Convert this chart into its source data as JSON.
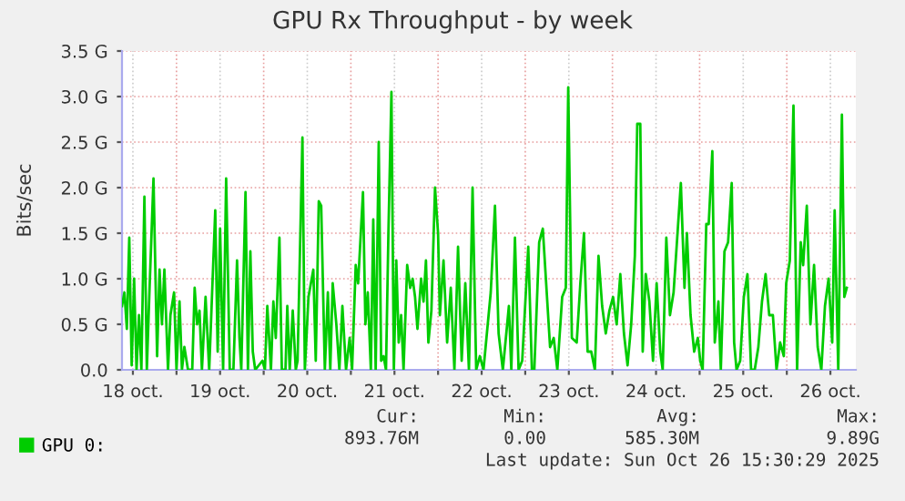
{
  "chart_data": {
    "type": "line",
    "title": "GPU Rx Throughput - by week",
    "ylabel": "Bits/sec",
    "xlim": [
      "2025-10-18T09:00",
      "2025-10-26T19:00"
    ],
    "xticks": [
      {
        "value": "2025-10-18T12:00",
        "label": "18 oct."
      },
      {
        "value": "2025-10-19T00:00",
        "label": null
      },
      {
        "value": "2025-10-19T12:00",
        "label": "19 oct."
      },
      {
        "value": "2025-10-20T00:00",
        "label": null
      },
      {
        "value": "2025-10-20T12:00",
        "label": "20 oct."
      },
      {
        "value": "2025-10-21T00:00",
        "label": null
      },
      {
        "value": "2025-10-21T12:00",
        "label": "21 oct."
      },
      {
        "value": "2025-10-22T00:00",
        "label": null
      },
      {
        "value": "2025-10-22T12:00",
        "label": "22 oct."
      },
      {
        "value": "2025-10-23T00:00",
        "label": null
      },
      {
        "value": "2025-10-23T12:00",
        "label": "23 oct."
      },
      {
        "value": "2025-10-24T00:00",
        "label": null
      },
      {
        "value": "2025-10-24T12:00",
        "label": "24 oct."
      },
      {
        "value": "2025-10-25T00:00",
        "label": null
      },
      {
        "value": "2025-10-25T12:00",
        "label": "25 oct."
      },
      {
        "value": "2025-10-26T00:00",
        "label": null
      },
      {
        "value": "2025-10-26T12:00",
        "label": "26 oct."
      }
    ],
    "ylim": [
      0,
      3.5
    ],
    "yticks": [
      {
        "value": 0,
        "label": "0.0"
      },
      {
        "value": 0.5,
        "label": "0.5 G"
      },
      {
        "value": 1,
        "label": "1.0 G"
      },
      {
        "value": 1.5,
        "label": "1.5 G"
      },
      {
        "value": 2,
        "label": "2.0 G"
      },
      {
        "value": 2.5,
        "label": "2.5 G"
      },
      {
        "value": 3,
        "label": "3.0 G"
      },
      {
        "value": 3.5,
        "label": "3.5 G"
      }
    ],
    "grid": true,
    "legend": "bottom",
    "marker": "none",
    "line_style": "solid",
    "annotations": [
      "Cur:",
      "893.76M",
      "Min:",
      "0.00",
      "Avg:",
      "585.30M",
      "Max:",
      "9.89G",
      "Last update: Sun Oct 26 15:30:29 2025"
    ],
    "series": [
      {
        "name": "GPU 0:",
        "color": "#00cc00",
        "x": [
          "2025-10-18T09:00",
          "2025-10-18T09:40",
          "2025-10-18T10:20",
          "2025-10-18T11:00",
          "2025-10-18T11:40",
          "2025-10-18T12:20",
          "2025-10-18T13:00",
          "2025-10-18T13:40",
          "2025-10-18T14:20",
          "2025-10-18T15:10",
          "2025-10-18T15:50",
          "2025-10-18T16:30",
          "2025-10-18T17:40",
          "2025-10-18T18:40",
          "2025-10-18T19:20",
          "2025-10-18T20:00",
          "2025-10-18T20:40",
          "2025-10-18T21:40",
          "2025-10-18T22:20",
          "2025-10-18T23:20",
          "2025-10-19T00:00",
          "2025-10-19T00:50",
          "2025-10-19T01:30",
          "2025-10-19T02:10",
          "2025-10-19T03:10",
          "2025-10-19T04:20",
          "2025-10-19T05:00",
          "2025-10-19T05:40",
          "2025-10-19T06:20",
          "2025-10-19T07:00",
          "2025-10-19T08:00",
          "2025-10-19T09:00",
          "2025-10-19T10:40",
          "2025-10-19T11:20",
          "2025-10-19T12:00",
          "2025-10-19T12:50",
          "2025-10-19T13:40",
          "2025-10-19T14:40",
          "2025-10-19T15:40",
          "2025-10-19T16:40",
          "2025-10-19T17:20",
          "2025-10-19T17:50",
          "2025-10-19T19:00",
          "2025-10-19T19:40",
          "2025-10-19T20:20",
          "2025-10-19T21:00",
          "2025-10-19T21:40",
          "2025-10-19T22:40",
          "2025-10-19T23:40",
          "2025-10-20T00:20",
          "2025-10-20T01:00",
          "2025-10-20T02:00",
          "2025-10-20T02:40",
          "2025-10-20T03:20",
          "2025-10-20T04:20",
          "2025-10-20T05:00",
          "2025-10-20T06:00",
          "2025-10-20T06:30",
          "2025-10-20T07:10",
          "2025-10-20T08:00",
          "2025-10-20T08:50",
          "2025-10-20T09:20",
          "2025-10-20T10:40",
          "2025-10-20T11:20",
          "2025-10-20T12:20",
          "2025-10-20T13:40",
          "2025-10-20T14:20",
          "2025-10-20T15:10",
          "2025-10-20T15:50",
          "2025-10-20T16:50",
          "2025-10-20T17:40",
          "2025-10-20T18:20",
          "2025-10-20T19:00",
          "2025-10-20T20:00",
          "2025-10-20T20:50",
          "2025-10-20T21:40",
          "2025-10-20T22:40",
          "2025-10-20T23:40",
          "2025-10-21T00:20",
          "2025-10-21T01:20",
          "2025-10-21T02:00",
          "2025-10-21T03:20",
          "2025-10-21T04:00",
          "2025-10-21T04:40",
          "2025-10-21T05:30",
          "2025-10-21T06:10",
          "2025-10-21T06:50",
          "2025-10-21T07:40",
          "2025-10-21T08:20",
          "2025-10-21T09:00",
          "2025-10-21T09:40",
          "2025-10-21T10:20",
          "2025-10-21T11:10",
          "2025-10-21T11:50",
          "2025-10-21T12:30",
          "2025-10-21T13:10",
          "2025-10-21T13:50",
          "2025-10-21T14:30",
          "2025-10-21T15:30",
          "2025-10-21T16:20",
          "2025-10-21T17:00",
          "2025-10-21T17:40",
          "2025-10-21T18:20",
          "2025-10-21T19:20",
          "2025-10-21T20:00",
          "2025-10-21T20:40",
          "2025-10-21T21:20",
          "2025-10-21T22:10",
          "2025-10-21T23:10",
          "2025-10-22T00:00",
          "2025-10-22T00:30",
          "2025-10-22T01:30",
          "2025-10-22T02:30",
          "2025-10-22T03:30",
          "2025-10-22T04:30",
          "2025-10-22T05:30",
          "2025-10-22T06:30",
          "2025-10-22T07:30",
          "2025-10-22T08:30",
          "2025-10-22T09:30",
          "2025-10-22T10:30",
          "2025-10-22T11:30",
          "2025-10-22T12:30",
          "2025-10-22T14:30",
          "2025-10-22T15:40",
          "2025-10-22T16:40",
          "2025-10-22T17:50",
          "2025-10-22T19:30",
          "2025-10-22T20:10",
          "2025-10-22T21:10",
          "2025-10-22T22:10",
          "2025-10-22T23:10",
          "2025-10-23T00:50",
          "2025-10-23T01:50",
          "2025-10-23T02:30",
          "2025-10-23T03:50",
          "2025-10-23T04:50",
          "2025-10-23T05:50",
          "2025-10-23T06:50",
          "2025-10-23T07:50",
          "2025-10-23T08:50",
          "2025-10-23T10:10",
          "2025-10-23T11:10",
          "2025-10-23T11:50",
          "2025-10-23T12:50",
          "2025-10-23T14:10",
          "2025-10-23T15:10",
          "2025-10-23T16:10",
          "2025-10-23T17:10",
          "2025-10-23T18:10",
          "2025-10-23T19:10",
          "2025-10-23T20:10",
          "2025-10-23T21:10",
          "2025-10-23T22:10",
          "2025-10-23T23:10",
          "2025-10-24T00:10",
          "2025-10-24T01:10",
          "2025-10-24T02:10",
          "2025-10-24T03:10",
          "2025-10-24T04:10",
          "2025-10-24T05:10",
          "2025-10-24T06:10",
          "2025-10-24T06:50",
          "2025-10-24T07:40",
          "2025-10-24T08:20",
          "2025-10-24T09:10",
          "2025-10-24T10:10",
          "2025-10-24T11:10",
          "2025-10-24T12:10",
          "2025-10-24T13:10",
          "2025-10-24T13:50",
          "2025-10-24T14:50",
          "2025-10-24T15:50",
          "2025-10-24T16:50",
          "2025-10-24T17:50",
          "2025-10-24T18:50",
          "2025-10-24T19:50",
          "2025-10-24T20:30",
          "2025-10-24T21:30",
          "2025-10-24T22:30",
          "2025-10-24T23:30",
          "2025-10-25T00:10",
          "2025-10-25T00:50",
          "2025-10-25T01:50",
          "2025-10-25T02:30",
          "2025-10-25T03:30",
          "2025-10-25T04:10",
          "2025-10-25T05:10",
          "2025-10-25T05:50",
          "2025-10-25T06:50",
          "2025-10-25T07:50",
          "2025-10-25T08:50",
          "2025-10-25T09:30",
          "2025-10-25T10:10",
          "2025-10-25T11:10",
          "2025-10-25T12:10",
          "2025-10-25T13:10",
          "2025-10-25T14:10",
          "2025-10-25T15:10",
          "2025-10-25T16:10",
          "2025-10-25T17:10",
          "2025-10-25T18:10",
          "2025-10-25T19:10",
          "2025-10-25T20:10",
          "2025-10-25T21:10",
          "2025-10-25T22:10",
          "2025-10-25T23:10",
          "2025-10-25T23:50",
          "2025-10-26T00:50",
          "2025-10-26T01:50",
          "2025-10-26T02:50",
          "2025-10-26T03:50",
          "2025-10-26T04:30",
          "2025-10-26T05:30",
          "2025-10-26T06:30",
          "2025-10-26T07:30",
          "2025-10-26T08:30",
          "2025-10-26T09:30",
          "2025-10-26T10:30",
          "2025-10-26T11:30",
          "2025-10-26T12:30",
          "2025-10-26T13:10",
          "2025-10-26T14:10",
          "2025-10-26T15:10",
          "2025-10-26T15:50",
          "2025-10-26T16:30"
        ],
        "values": [
          0.7,
          0.85,
          0.45,
          1.45,
          0.05,
          1.0,
          0,
          0.6,
          0,
          1.9,
          0,
          0.8,
          2.1,
          0.15,
          1.1,
          0.5,
          1.1,
          0,
          0.6,
          0.85,
          0,
          0.75,
          0,
          0.25,
          0,
          0,
          0.9,
          0.5,
          0.65,
          0,
          0.8,
          0,
          1.75,
          0.2,
          1.55,
          0,
          2.1,
          0,
          0,
          1.2,
          0.35,
          0,
          1.95,
          0,
          1.3,
          0.2,
          0,
          0.05,
          0.1,
          0,
          0.7,
          0,
          0.75,
          0.35,
          1.45,
          0,
          0,
          0.7,
          0,
          0.65,
          0,
          0.1,
          2.55,
          0,
          0.8,
          1.1,
          0.1,
          1.85,
          1.8,
          0,
          0.85,
          0,
          0.95,
          0.5,
          0,
          0.7,
          0,
          0.35,
          0,
          1.15,
          0.95,
          1.95,
          0.5,
          0.85,
          0,
          1.65,
          0,
          2.5,
          0.1,
          0.15,
          0,
          1.5,
          3.05,
          0,
          1.2,
          0.3,
          0.6,
          0,
          1.15,
          0.9,
          1.0,
          0.8,
          0.45,
          1.0,
          0.75,
          1.2,
          0.3,
          0.65,
          2.0,
          1.5,
          0.6,
          1.2,
          0.3,
          0.9,
          0,
          1.35,
          0.1,
          0.95,
          0,
          2.0,
          0,
          0.15,
          0,
          0.85,
          1.8,
          0.4,
          0,
          0.7,
          0,
          1.45,
          0,
          0.1,
          1.35,
          0,
          0,
          1.4,
          1.55,
          0.9,
          0.25,
          0.35,
          0,
          0.8,
          0.9,
          3.1,
          0.35,
          0.3,
          0.95,
          1.5,
          0.2,
          0.2,
          0,
          1.25,
          0.7,
          0.4,
          0.65,
          0.8,
          0.5,
          1.05,
          0.4,
          0.05,
          0.5,
          1.25,
          2.7,
          2.7,
          0.2,
          1.05,
          0.75,
          0.1,
          0.95,
          0.2,
          0,
          1.45,
          0.6,
          0.85,
          1.45,
          2.05,
          0.9,
          1.5,
          0.6,
          0.2,
          0.35,
          0.1,
          0,
          1.6,
          1.6,
          2.4,
          0.3,
          0.75,
          0,
          1.3,
          1.4,
          2.05,
          0.3,
          0,
          0.1,
          0.8,
          1.05,
          0,
          0,
          0.25,
          0.75,
          1.05,
          0.6,
          0.6,
          0,
          0.3,
          0.15,
          0.95,
          1.2,
          2.9,
          0,
          1.4,
          1.15,
          1.8,
          0.5,
          1.15,
          0.25,
          0,
          0.7,
          1.0,
          0.3,
          1.75,
          0,
          2.8,
          0.8,
          0.9
        ]
      }
    ]
  }
}
